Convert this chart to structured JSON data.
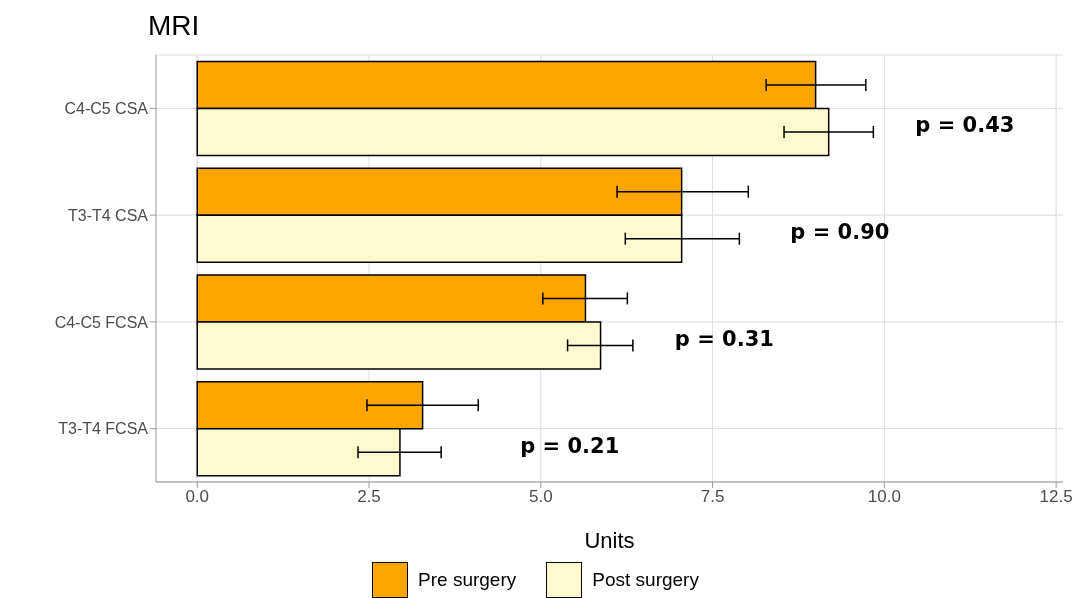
{
  "chart_data": {
    "type": "bar",
    "orientation": "horizontal",
    "title": "MRI",
    "xlabel": "Units",
    "categories": [
      "C4-C5 CSA",
      "T3-T4 CSA",
      "C4-C5 FCSA",
      "T3-T4 FCSA"
    ],
    "series": [
      {
        "name": "Pre surgery",
        "color": "#ffa500",
        "values": [
          9.0,
          7.05,
          5.65,
          3.28
        ],
        "errors": [
          [
            8.28,
            9.73
          ],
          [
            6.11,
            8.02
          ],
          [
            5.03,
            6.26
          ],
          [
            2.47,
            4.09
          ]
        ]
      },
      {
        "name": "Post surgery",
        "color": "#fffacd",
        "values": [
          9.19,
          7.05,
          5.87,
          2.95
        ],
        "errors": [
          [
            8.54,
            9.84
          ],
          [
            6.23,
            7.89
          ],
          [
            5.39,
            6.34
          ],
          [
            2.34,
            3.55
          ]
        ]
      }
    ],
    "xlim": [
      -0.6,
      12.6
    ],
    "xticks": [
      {
        "value": 0,
        "label": "0.0"
      },
      {
        "value": 2.5,
        "label": "2.5"
      },
      {
        "value": 5,
        "label": "5.0"
      },
      {
        "value": 7.5,
        "label": "7.5"
      },
      {
        "value": 10,
        "label": "10.0"
      },
      {
        "value": 12.5,
        "label": "12.5"
      }
    ],
    "grid": true,
    "legend": "bottom",
    "annotations": [
      "p = 0.43",
      "p = 0.90",
      "p = 0.31",
      "p = 0.21"
    ]
  }
}
